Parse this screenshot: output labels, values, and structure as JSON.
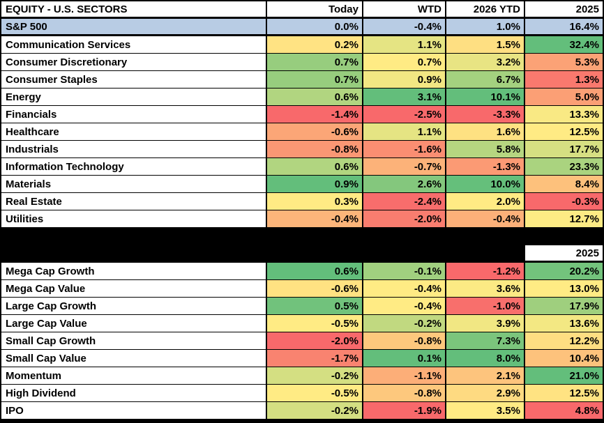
{
  "styles": {
    "benchmark_row_bg": "#B8CCE4",
    "header_bg": "#FFFFFF",
    "grid_border": "#000000",
    "text_color": "#000000",
    "scale_negative": "#F8696B",
    "scale_mid": "#FFEB84",
    "scale_positive": "#63BE7B"
  },
  "chart_data": {
    "type": "heatmap",
    "title": "EQUITY - U.S. SECTORS",
    "columns": [
      "Today",
      "WTD",
      "2026 YTD",
      "2025"
    ],
    "value_format": "percent_1dp",
    "color_scale": "per-column red-yellow-green (min / median / max)",
    "sections": [
      {
        "benchmark_row": {
          "label": "S&P 500",
          "values": [
            0.0,
            -0.4,
            1.0,
            16.4
          ]
        },
        "rows": [
          {
            "label": "Communication Services",
            "values": [
              0.2,
              1.1,
              1.5,
              32.4
            ]
          },
          {
            "label": "Consumer Discretionary",
            "values": [
              0.7,
              0.7,
              3.2,
              5.3
            ]
          },
          {
            "label": "Consumer Staples",
            "values": [
              0.7,
              0.9,
              6.7,
              1.3
            ]
          },
          {
            "label": "Energy",
            "values": [
              0.6,
              3.1,
              10.1,
              5.0
            ]
          },
          {
            "label": "Financials",
            "values": [
              -1.4,
              -2.5,
              -3.3,
              13.3
            ]
          },
          {
            "label": "Healthcare",
            "values": [
              -0.6,
              1.1,
              1.6,
              12.5
            ]
          },
          {
            "label": "Industrials",
            "values": [
              -0.8,
              -1.6,
              5.8,
              17.7
            ]
          },
          {
            "label": "Information Technology",
            "values": [
              0.6,
              -0.7,
              -1.3,
              23.3
            ]
          },
          {
            "label": "Materials",
            "values": [
              0.9,
              2.6,
              10.0,
              8.4
            ]
          },
          {
            "label": "Real Estate",
            "values": [
              0.3,
              -2.4,
              2.0,
              -0.3
            ]
          },
          {
            "label": "Utilities",
            "values": [
              -0.4,
              -2.0,
              -0.4,
              12.7
            ]
          }
        ]
      },
      {
        "header_labels": [
          "",
          "",
          "",
          "2025"
        ],
        "rows": [
          {
            "label": "Mega Cap Growth",
            "values": [
              0.6,
              -0.1,
              -1.2,
              20.2
            ]
          },
          {
            "label": "Mega Cap Value",
            "values": [
              -0.6,
              -0.4,
              3.6,
              13.0
            ]
          },
          {
            "label": "Large Cap Growth",
            "values": [
              0.5,
              -0.4,
              -1.0,
              17.9
            ]
          },
          {
            "label": "Large Cap Value",
            "values": [
              -0.5,
              -0.2,
              3.9,
              13.6
            ]
          },
          {
            "label": "Small Cap Growth",
            "values": [
              -2.0,
              -0.8,
              7.3,
              12.2
            ]
          },
          {
            "label": "Small Cap Value",
            "values": [
              -1.7,
              0.1,
              8.0,
              10.4
            ]
          },
          {
            "label": "Momentum",
            "values": [
              -0.2,
              -1.1,
              2.1,
              21.0
            ]
          },
          {
            "label": "High Dividend",
            "values": [
              -0.5,
              -0.8,
              2.9,
              12.5
            ]
          },
          {
            "label": "IPO",
            "values": [
              -0.2,
              -1.9,
              3.5,
              4.8
            ]
          }
        ]
      }
    ]
  }
}
